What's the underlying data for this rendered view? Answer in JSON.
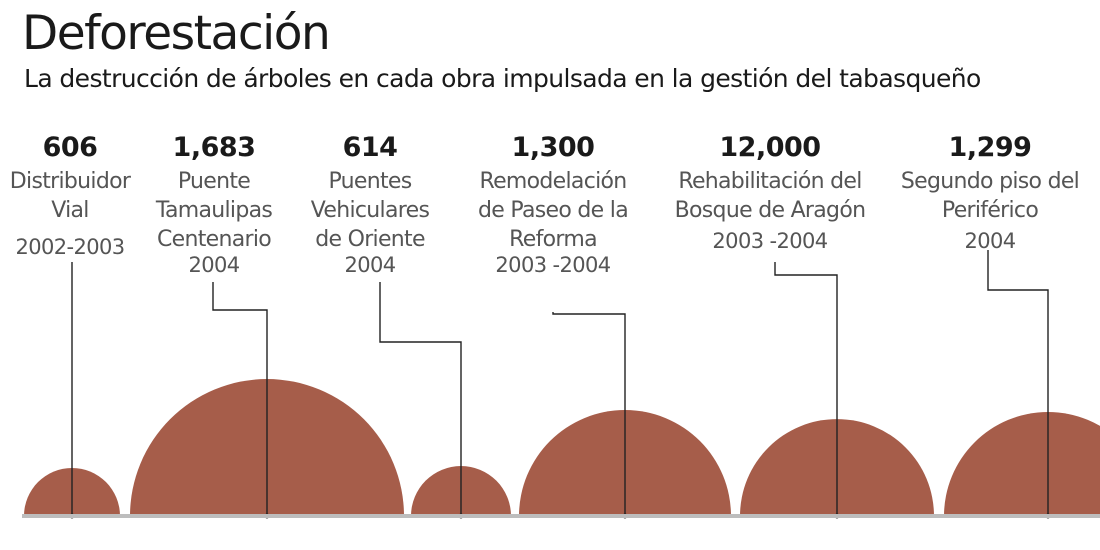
{
  "title": "Deforestación",
  "subtitle": "La destrucción de árboles en cada obra impulsada en la gestión del tabasqueño",
  "colors": {
    "bubble": "#a65d4a",
    "baseline": "#bdbdbd",
    "leader": "#222222",
    "text": "#1a1a1a",
    "label": "#555555"
  },
  "chart_data": {
    "type": "bubble",
    "title": "Deforestación",
    "subtitle": "La destrucción de árboles en cada obra impulsada en la gestión del tabasqueño",
    "series": [
      {
        "value_label": "606",
        "value": 606,
        "name": [
          "Distribuidor",
          "Vial"
        ],
        "period": "2002-2003"
      },
      {
        "value_label": "1,683",
        "value": 1683,
        "name": [
          "Puente",
          "Tamaulipas",
          "Centenario"
        ],
        "period": "2004"
      },
      {
        "value_label": "614",
        "value": 614,
        "name": [
          "Puentes",
          "Vehiculares",
          "de Oriente"
        ],
        "period": "2004"
      },
      {
        "value_label": "1,300",
        "value": 1300,
        "name": [
          "Remodelación",
          "de Paseo de la",
          "Reforma"
        ],
        "period": "2003 -2004"
      },
      {
        "value_label": "12,000",
        "value": 12000,
        "name": [
          "Rehabilitación del",
          "Bosque de Aragón"
        ],
        "period": "2003 -2004"
      },
      {
        "value_label": "1,299",
        "value": 1299,
        "name": [
          "Segundo piso del",
          "Periférico"
        ],
        "period": "2004"
      }
    ]
  }
}
